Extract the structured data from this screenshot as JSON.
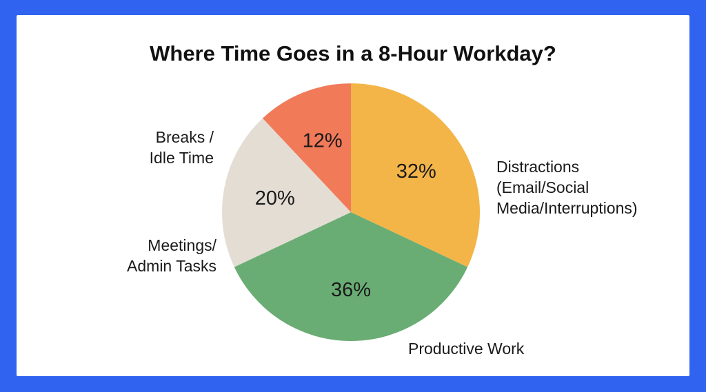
{
  "chart_data": {
    "type": "pie",
    "title": "Where Time Goes in a 8-Hour Workday?",
    "slices": [
      {
        "label_lines": [
          "Distractions",
          "(Email/Social",
          "Media/Interruptions)"
        ],
        "value": 32,
        "value_label": "32%",
        "color": "#f3b547"
      },
      {
        "label_lines": [
          "Productive Work"
        ],
        "value": 36,
        "value_label": "36%",
        "color": "#6aad74"
      },
      {
        "label_lines": [
          "Meetings/",
          "Admin Tasks"
        ],
        "value": 20,
        "value_label": "20%",
        "color": "#e4ddd4"
      },
      {
        "label_lines": [
          "Breaks /",
          "Idle Time"
        ],
        "value": 12,
        "value_label": "12%",
        "color": "#f17a59"
      }
    ]
  }
}
